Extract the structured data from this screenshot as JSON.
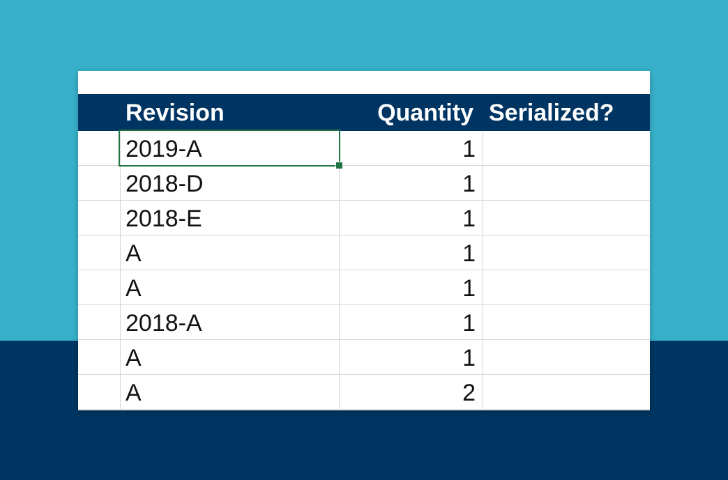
{
  "colors": {
    "background_top": "#38b0c9",
    "background_bottom": "#003563",
    "header_bg": "#003563",
    "header_text": "#ffffff",
    "selection_border": "#217346"
  },
  "table": {
    "headers": [
      "Revision",
      "Quantity",
      "Serialized?"
    ],
    "rows": [
      {
        "revision": "2019-A",
        "quantity": "1",
        "serialized": ""
      },
      {
        "revision": "2018-D",
        "quantity": "1",
        "serialized": ""
      },
      {
        "revision": "2018-E",
        "quantity": "1",
        "serialized": ""
      },
      {
        "revision": "A",
        "quantity": "1",
        "serialized": ""
      },
      {
        "revision": "A",
        "quantity": "1",
        "serialized": ""
      },
      {
        "revision": "2018-A",
        "quantity": "1",
        "serialized": ""
      },
      {
        "revision": "A",
        "quantity": "1",
        "serialized": ""
      },
      {
        "revision": "A",
        "quantity": "2",
        "serialized": ""
      }
    ],
    "selected_cell": "2019-A"
  }
}
